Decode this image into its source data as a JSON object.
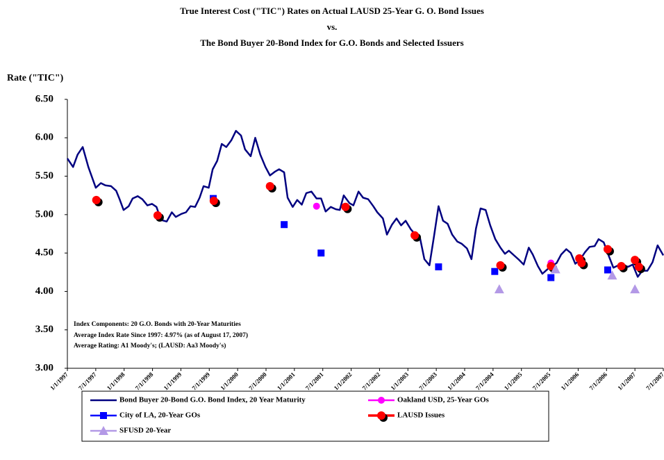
{
  "chart_data": {
    "type": "line",
    "title": [
      "True Interest Cost (\"TIC\") Rates on Actual LAUSD 25-Year G. O. Bond Issues",
      "vs.",
      "The Bond Buyer 20-Bond Index for G.O. Bonds and Selected Issuers"
    ],
    "y_label": "Rate (\"TIC\")",
    "annotations": [
      "Index Components:  20 G.O. Bonds with 20-Year Maturities",
      "Average Index Rate Since 1997:  4.97% (as of August 17, 2007)",
      "Average Rating:  A1 Moody's;  (LAUSD:  Aa3 Moody's)"
    ],
    "xlim": [
      1997,
      2007.5
    ],
    "xticks": [
      {
        "value": 1997,
        "label": "1/1/1997"
      },
      {
        "value": 1997.5,
        "label": "7/1/1997"
      },
      {
        "value": 1998,
        "label": "1/1/1998"
      },
      {
        "value": 1998.5,
        "label": "7/1/1998"
      },
      {
        "value": 1999,
        "label": "1/1/1999"
      },
      {
        "value": 1999.5,
        "label": "7/1/1999"
      },
      {
        "value": 2000,
        "label": "1/1/2000"
      },
      {
        "value": 2000.5,
        "label": "7/1/2000"
      },
      {
        "value": 2001,
        "label": "1/1/2001"
      },
      {
        "value": 2001.5,
        "label": "7/1/2001"
      },
      {
        "value": 2002,
        "label": "1/1/2002"
      },
      {
        "value": 2002.5,
        "label": "7/1/2002"
      },
      {
        "value": 2003,
        "label": "1/1/2003"
      },
      {
        "value": 2003.5,
        "label": "7/1/2003"
      },
      {
        "value": 2004,
        "label": "1/1/2004"
      },
      {
        "value": 2004.5,
        "label": "7/1/2004"
      },
      {
        "value": 2005,
        "label": "1/1/2005"
      },
      {
        "value": 2005.5,
        "label": "7/1/2005"
      },
      {
        "value": 2006,
        "label": "1/1/2006"
      },
      {
        "value": 2006.5,
        "label": "7/1/2006"
      },
      {
        "value": 2007,
        "label": "1/1/2007"
      },
      {
        "value": 2007.5,
        "label": "7/1/2007"
      }
    ],
    "ylim": [
      3,
      6.5
    ],
    "yticks": [
      {
        "value": 3,
        "label": "3.00"
      },
      {
        "value": 3.5,
        "label": "3.50"
      },
      {
        "value": 4,
        "label": "4.00"
      },
      {
        "value": 4.5,
        "label": "4.50"
      },
      {
        "value": 5,
        "label": "5.00"
      },
      {
        "value": 5.5,
        "label": "5.50"
      },
      {
        "value": 6,
        "label": "6.00"
      },
      {
        "value": 6.5,
        "label": "6.50"
      }
    ],
    "series": [
      {
        "name": "Bond Buyer 20-Bond G.O. Bond Index, 20 Year Maturity",
        "color": "#000080",
        "line": true,
        "marker": "none",
        "x": [
          1997.0,
          1997.1,
          1997.18,
          1997.27,
          1997.37,
          1997.5,
          1997.59,
          1997.67,
          1997.77,
          1997.86,
          1997.92,
          1997.99,
          1998.08,
          1998.15,
          1998.24,
          1998.32,
          1998.41,
          1998.49,
          1998.57,
          1998.65,
          1998.75,
          1998.84,
          1998.91,
          1999.01,
          1999.09,
          1999.17,
          1999.25,
          1999.33,
          1999.4,
          1999.49,
          1999.56,
          1999.64,
          1999.72,
          1999.8,
          1999.89,
          1999.97,
          2000.06,
          2000.13,
          2000.23,
          2000.31,
          2000.4,
          2000.49,
          2000.57,
          2000.66,
          2000.73,
          2000.82,
          2000.88,
          2000.97,
          2001.05,
          2001.13,
          2001.21,
          2001.3,
          2001.39,
          2001.47,
          2001.55,
          2001.64,
          2001.73,
          2001.8,
          2001.87,
          2001.97,
          2002.04,
          2002.13,
          2002.21,
          2002.3,
          2002.39,
          2002.46,
          2002.56,
          2002.63,
          2002.72,
          2002.8,
          2002.88,
          2002.96,
          2003.05,
          2003.12,
          2003.21,
          2003.29,
          2003.38,
          2003.46,
          2003.54,
          2003.62,
          2003.7,
          2003.78,
          2003.87,
          2003.95,
          2004.04,
          2004.12,
          2004.2,
          2004.28,
          2004.37,
          2004.45,
          2004.54,
          2004.63,
          2004.71,
          2004.78,
          2004.87,
          2004.96,
          2005.04,
          2005.13,
          2005.2,
          2005.29,
          2005.37,
          2005.46,
          2005.54,
          2005.62,
          2005.7,
          2005.79,
          2005.87,
          2005.95,
          2006.03,
          2006.12,
          2006.2,
          2006.29,
          2006.36,
          2006.45,
          2006.54,
          2006.62,
          2006.71,
          2006.79,
          2006.88,
          2006.96,
          2007.05,
          2007.13,
          2007.22,
          2007.31,
          2007.4,
          2007.5
        ],
        "values": [
          5.73,
          5.62,
          5.78,
          5.88,
          5.62,
          5.35,
          5.41,
          5.38,
          5.37,
          5.31,
          5.2,
          5.06,
          5.11,
          5.21,
          5.24,
          5.2,
          5.12,
          5.14,
          5.1,
          4.93,
          4.91,
          5.03,
          4.97,
          5.01,
          5.03,
          5.11,
          5.1,
          5.22,
          5.37,
          5.35,
          5.59,
          5.7,
          5.92,
          5.88,
          5.97,
          6.09,
          6.03,
          5.85,
          5.76,
          6.0,
          5.78,
          5.62,
          5.51,
          5.56,
          5.59,
          5.55,
          5.22,
          5.1,
          5.19,
          5.13,
          5.28,
          5.3,
          5.21,
          5.21,
          5.04,
          5.1,
          5.07,
          5.06,
          5.25,
          5.15,
          5.12,
          5.3,
          5.22,
          5.2,
          5.11,
          5.03,
          4.95,
          4.74,
          4.87,
          4.95,
          4.86,
          4.92,
          4.81,
          4.75,
          4.71,
          4.42,
          4.34,
          4.72,
          5.11,
          4.92,
          4.88,
          4.74,
          4.65,
          4.62,
          4.56,
          4.42,
          4.82,
          5.08,
          5.06,
          4.86,
          4.68,
          4.57,
          4.49,
          4.53,
          4.47,
          4.41,
          4.35,
          4.57,
          4.48,
          4.33,
          4.23,
          4.29,
          4.33,
          4.37,
          4.48,
          4.55,
          4.5,
          4.36,
          4.41,
          4.51,
          4.58,
          4.59,
          4.68,
          4.64,
          4.46,
          4.31,
          4.34,
          4.34,
          4.32,
          4.35,
          4.19,
          4.27,
          4.27,
          4.38,
          4.6,
          4.47
        ]
      },
      {
        "name": "Oakland USD, 25-Year GOs",
        "color": "#ff00ff",
        "line": false,
        "marker": "circle",
        "x": [
          2001.39,
          2005.52
        ],
        "values": [
          5.11,
          4.37
        ]
      },
      {
        "name": "City of LA, 20-Year GOs",
        "color": "#0000ff",
        "line": false,
        "marker": "square",
        "x": [
          1999.57,
          2000.82,
          2001.47,
          2003.54,
          2004.53,
          2005.52,
          2006.52
        ],
        "values": [
          5.21,
          4.87,
          4.5,
          4.32,
          4.26,
          4.18,
          4.28
        ]
      },
      {
        "name": "LAUSD Issues",
        "color": "#ff0000",
        "line": false,
        "marker": "shadow-circle",
        "x": [
          1997.51,
          1998.59,
          1999.58,
          2000.57,
          2001.9,
          2003.12,
          2004.63,
          2005.52,
          2006.02,
          2006.06,
          2006.52,
          2006.76,
          2007.0,
          2007.07
        ],
        "values": [
          5.19,
          4.99,
          5.18,
          5.37,
          5.1,
          4.73,
          4.34,
          4.33,
          4.43,
          4.37,
          4.55,
          4.33,
          4.41,
          4.32
        ]
      },
      {
        "name": "SFUSD 20-Year",
        "color": "#b399e6",
        "line": false,
        "marker": "triangle",
        "x": [
          2004.61,
          2005.6,
          2006.6,
          2007.0
        ],
        "values": [
          4.03,
          4.29,
          4.21,
          4.03
        ]
      }
    ]
  }
}
